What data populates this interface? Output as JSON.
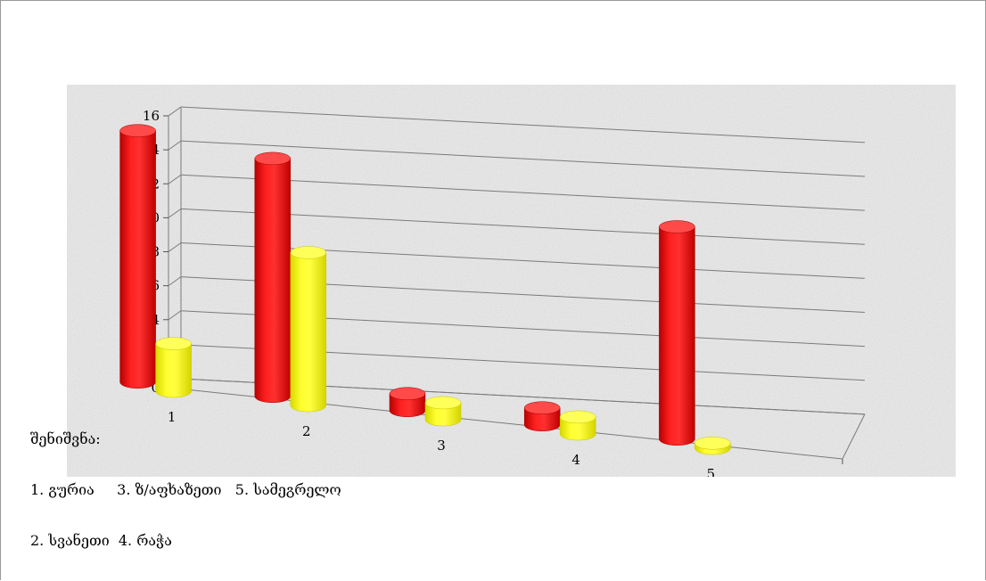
{
  "chart_data": {
    "type": "bar",
    "categories": [
      "1",
      "2",
      "3",
      "4",
      "5"
    ],
    "series": [
      {
        "values": [
          14.8,
          14.0,
          1.0,
          1.0,
          12.5
        ],
        "color": "#ff0000"
      },
      {
        "values": [
          2.8,
          9.0,
          1.0,
          1.0,
          0.3
        ],
        "color": "#ffff00"
      }
    ],
    "yticks": [
      "0",
      "2",
      "4",
      "6",
      "8",
      "10",
      "12",
      "14",
      "16"
    ],
    "ylim": [
      0,
      16
    ],
    "grid": true,
    "legend": "none",
    "background": "marble-gray"
  },
  "notes": {
    "heading": "შენიშვნა:",
    "line1": "1. გურია     3. ზ/აფხაზეთი   5. სამეგრელო",
    "line2": "2. სვანეთი  4. რაჭა"
  }
}
